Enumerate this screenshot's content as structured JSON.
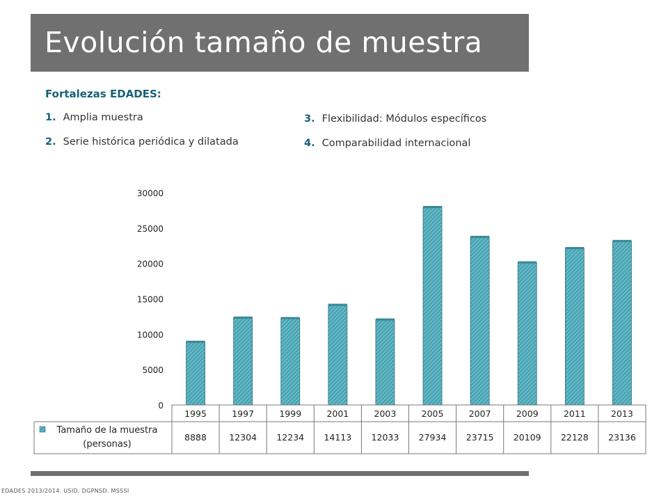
{
  "slide": {
    "title": "Evolución tamaño de muestra",
    "subheading": "Fortalezas EDADES:",
    "items": [
      {
        "num": "1.",
        "text": "Amplia muestra"
      },
      {
        "num": "2.",
        "text": "Serie histórica periódica y dilatada"
      },
      {
        "num": "3.",
        "text": "Flexibilidad: Módulos específicos"
      },
      {
        "num": "4.",
        "text": "Comparabilidad internacional"
      }
    ],
    "footer": "EDADES 2013/2014. USID. DGPNSD. MSSSI"
  },
  "colors": {
    "title_band": "#707070",
    "accent": "#17607a",
    "bar_fill": "#4ba5b4",
    "bar_hatch": "#8fd3dc",
    "bar_edge": "#2f6f7c"
  },
  "chart_data": {
    "type": "bar",
    "categories": [
      "1995",
      "1997",
      "1999",
      "2001",
      "2003",
      "2005",
      "2007",
      "2009",
      "2011",
      "2013"
    ],
    "series": [
      {
        "name": "Tamaño de la muestra (personas)",
        "name_lines": [
          "Tamaño de la muestra",
          "(personas)"
        ],
        "values": [
          8888,
          12304,
          12234,
          14113,
          12033,
          27934,
          23715,
          20109,
          22128,
          23136
        ]
      }
    ],
    "value_labels": [
      "8888",
      "12304",
      "12234",
      "14113",
      "12033",
      "27934",
      "23715",
      "20109",
      "22128",
      "23136"
    ],
    "ylim": [
      0,
      30000
    ],
    "yticks": [
      "0",
      "5000",
      "10000",
      "15000",
      "20000",
      "25000",
      "30000"
    ],
    "grid": false,
    "legend": "data table below axis"
  }
}
